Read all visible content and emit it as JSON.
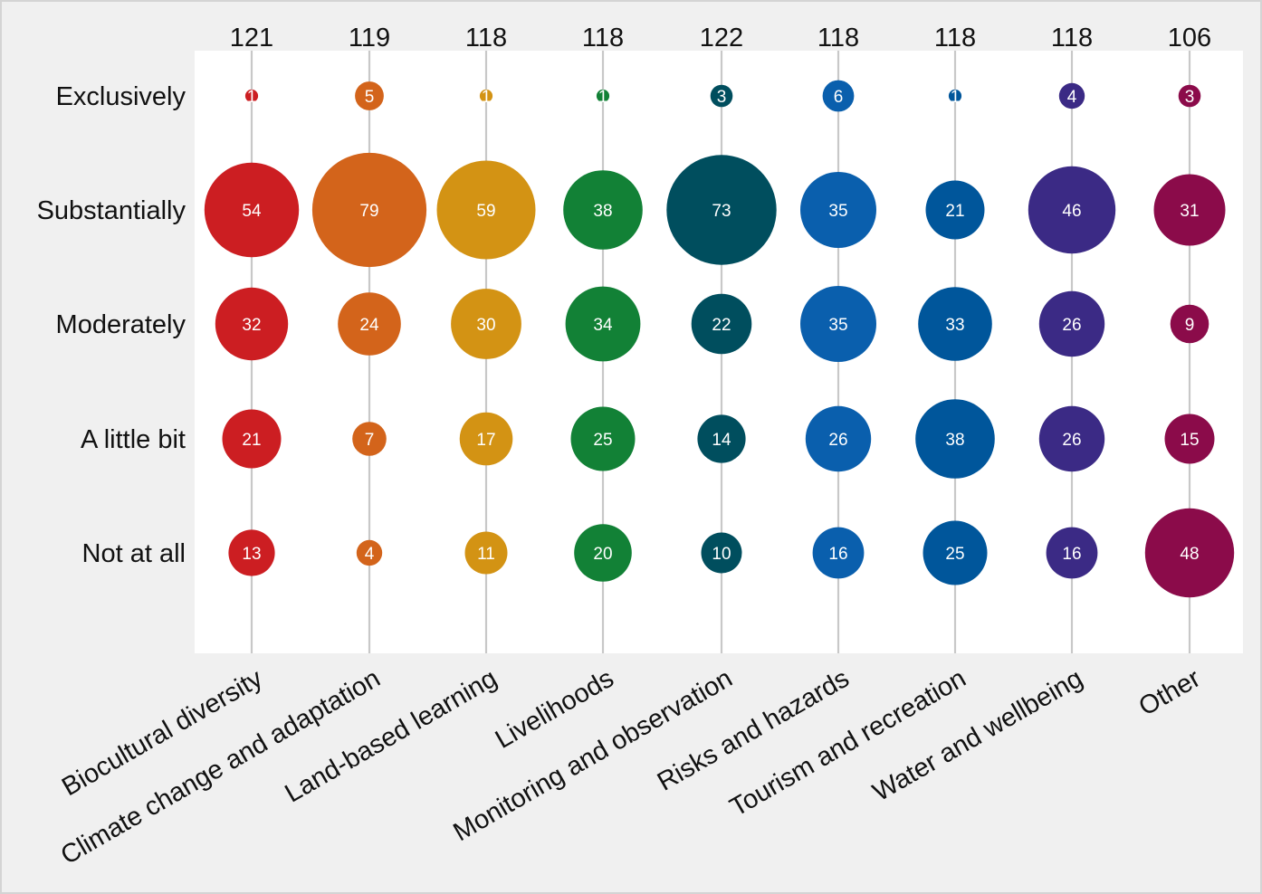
{
  "chart_data": {
    "type": "bubble-matrix",
    "categories": [
      "Biocultural diversity",
      "Climate change  and adaptation",
      "Land-based learning",
      "Livelihoods",
      "Monitoring and  observation",
      "Risks and hazards",
      "Tourism and recreation",
      "Water and wellbeing",
      "Other"
    ],
    "rows": [
      "Exclusively",
      "Substantially",
      "Moderately",
      "A little bit",
      "Not at all"
    ],
    "totals": [
      121,
      119,
      118,
      118,
      122,
      118,
      118,
      118,
      106
    ],
    "values": [
      [
        1,
        5,
        1,
        1,
        3,
        6,
        1,
        4,
        3
      ],
      [
        54,
        79,
        59,
        38,
        73,
        35,
        21,
        46,
        31
      ],
      [
        32,
        24,
        30,
        34,
        22,
        35,
        33,
        26,
        9
      ],
      [
        21,
        7,
        17,
        25,
        14,
        26,
        38,
        26,
        15
      ],
      [
        13,
        4,
        11,
        20,
        10,
        16,
        25,
        16,
        48
      ]
    ],
    "colors": [
      "#cc1e22",
      "#d3641b",
      "#d39314",
      "#128136",
      "#004e5e",
      "#0a5fad",
      "#00569b",
      "#3b2a85",
      "#8b0b4a"
    ],
    "grid": "vertical lines per category",
    "legend": "none"
  }
}
